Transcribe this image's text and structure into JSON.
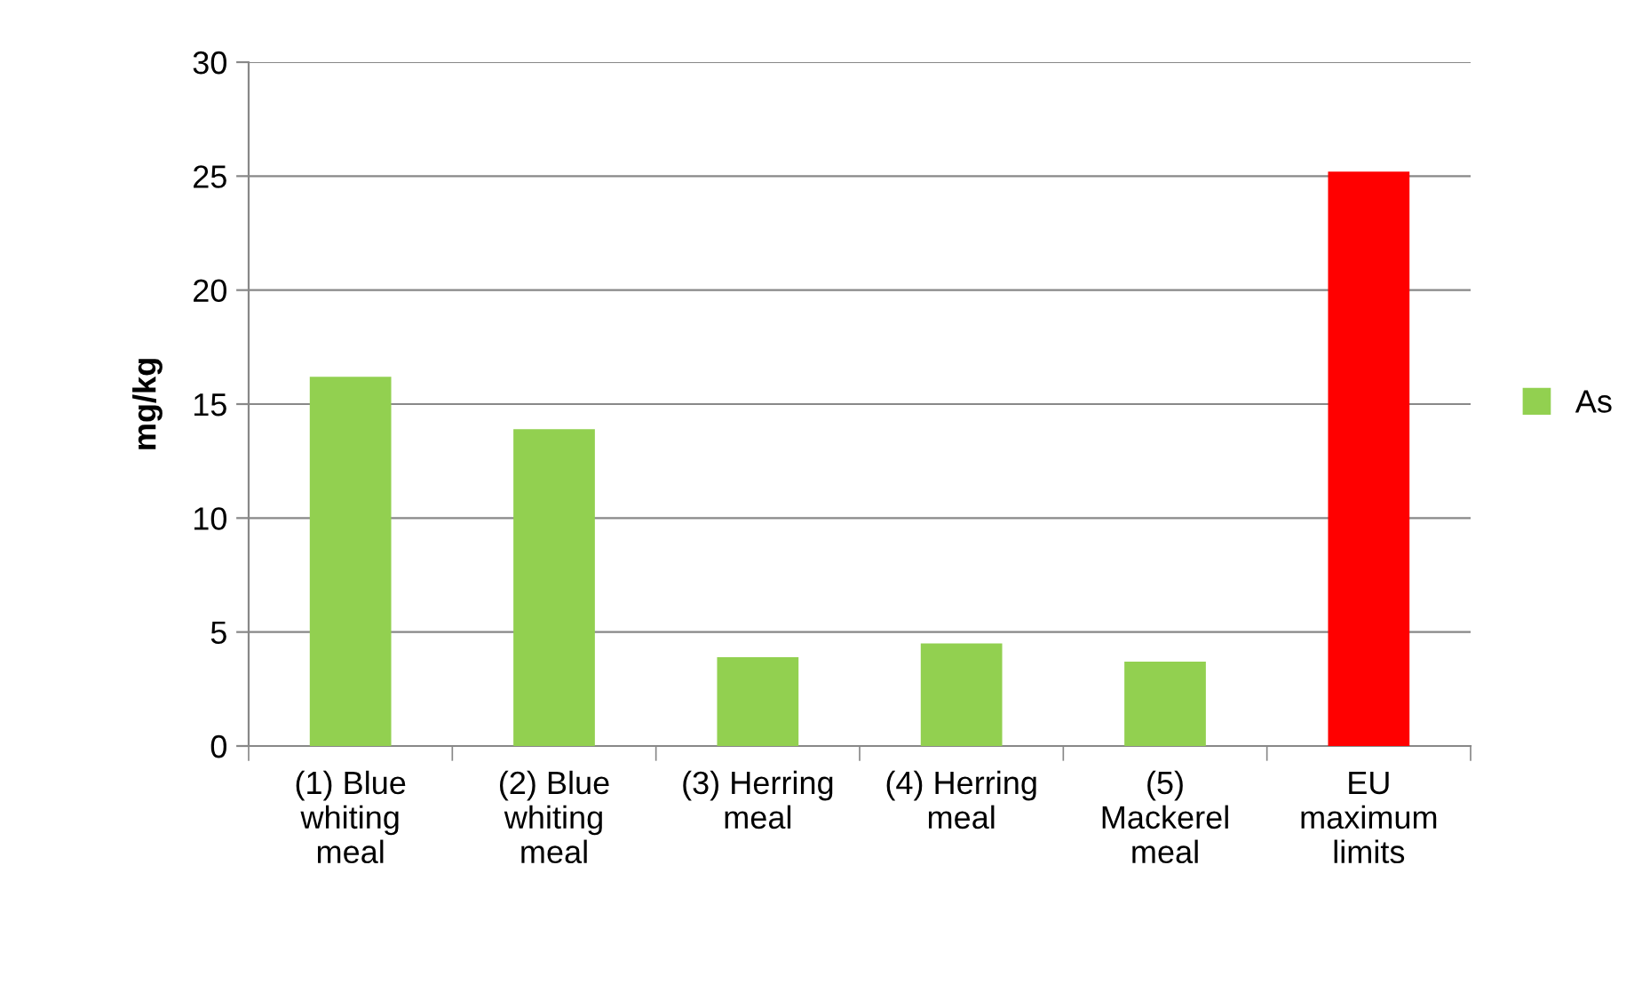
{
  "chart_data": {
    "type": "bar",
    "ylabel": "mg/kg",
    "categories": [
      "(1) Blue\nwhiting\nmeal",
      "(2) Blue\nwhiting\nmeal",
      "(3) Herring\nmeal",
      "(4) Herring\nmeal",
      "(5)\nMackerel\nmeal",
      "EU\nmaximum\nlimits"
    ],
    "series": [
      {
        "name": "As",
        "color": "#92d050",
        "colors": [
          "#92d050",
          "#92d050",
          "#92d050",
          "#92d050",
          "#92d050",
          "#ff0000"
        ],
        "values": [
          16.2,
          13.9,
          3.9,
          4.5,
          3.7,
          25.2
        ]
      }
    ],
    "ylim": [
      0,
      30
    ],
    "yticks": [
      0,
      5,
      10,
      15,
      20,
      25,
      30
    ],
    "grid": "y",
    "legend": "right"
  }
}
